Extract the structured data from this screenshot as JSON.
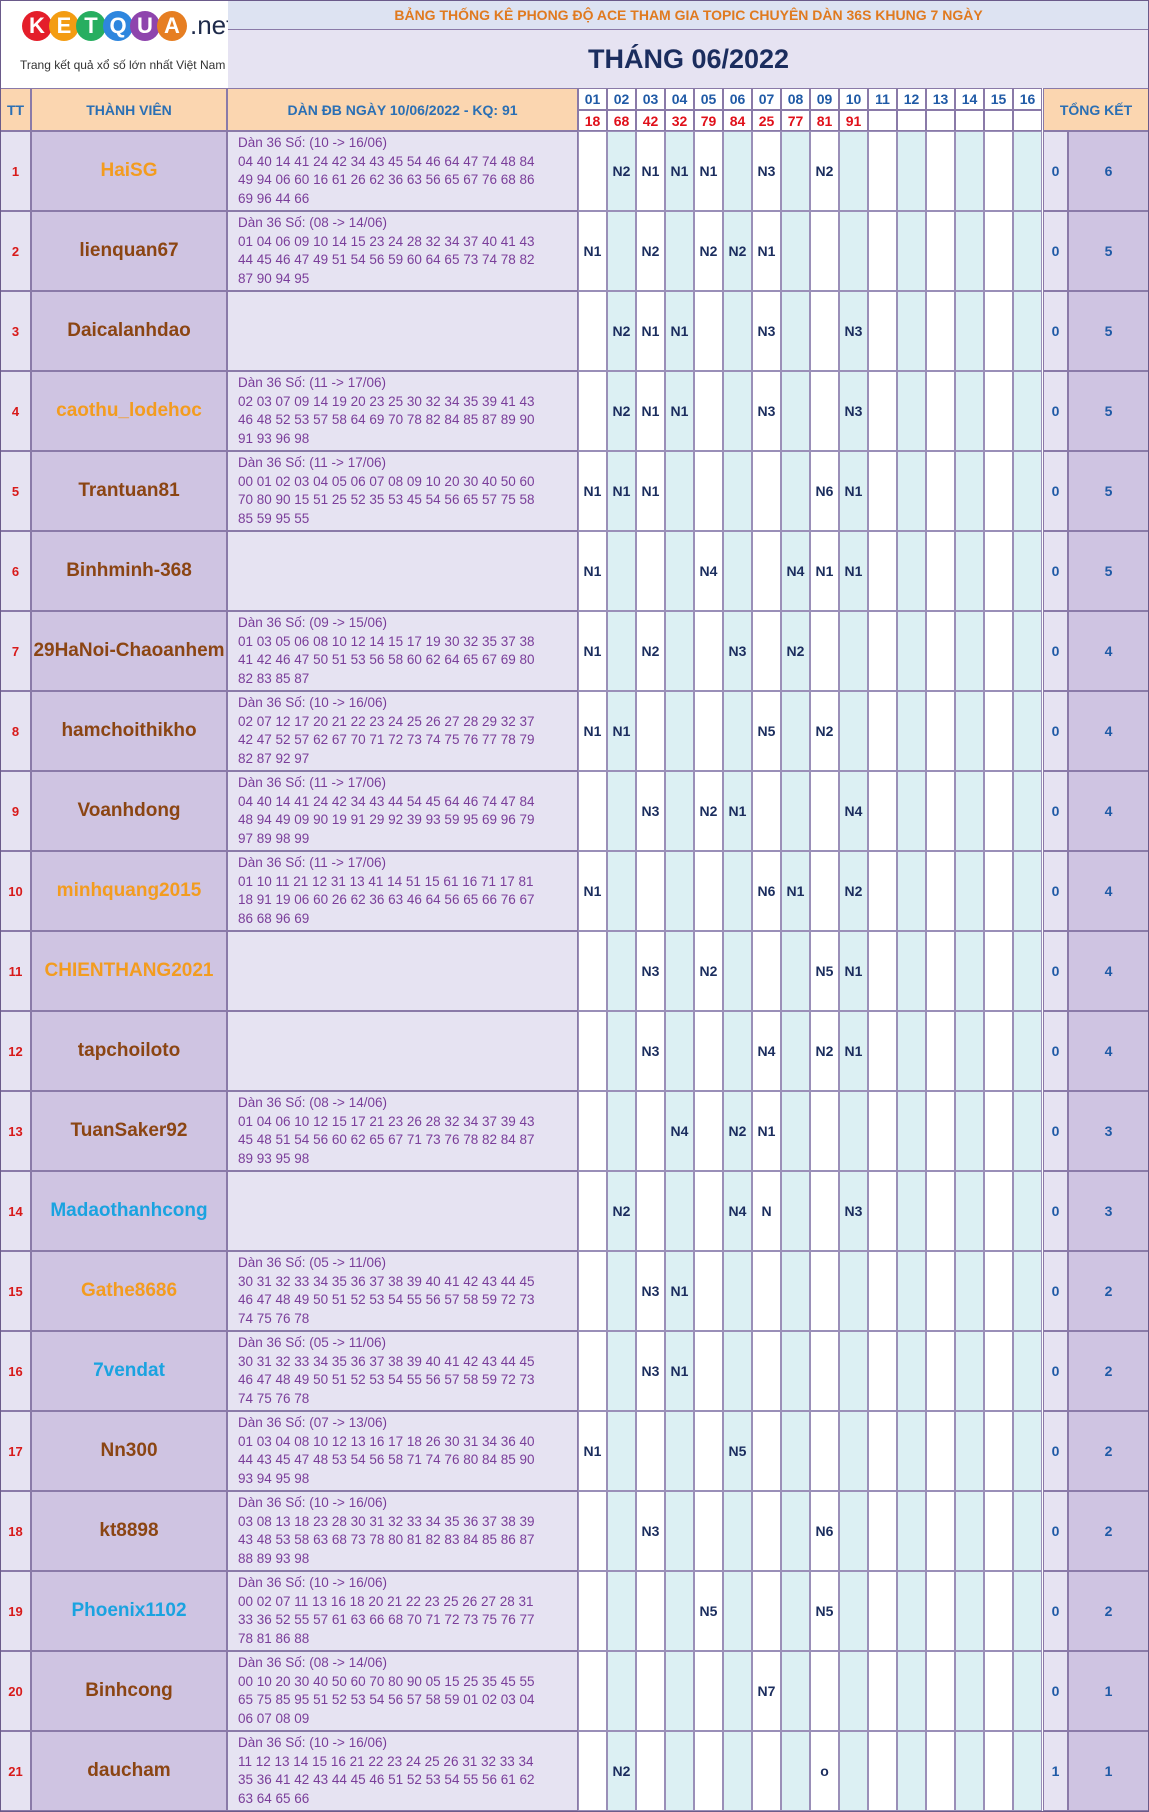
{
  "logo": {
    "letters": [
      "K",
      "E",
      "T",
      "Q",
      "U",
      "A"
    ],
    "colors": [
      "#e41e2a",
      "#f39c12",
      "#27ae60",
      "#2e86de",
      "#8e44ad",
      "#e67e22"
    ],
    "suffix": ".net",
    "tagline": "Trang kết quả xổ số lớn nhất Việt Nam"
  },
  "header": {
    "subtitle": "BẢNG THỐNG KÊ PHONG ĐỘ ACE THAM GIA TOPIC CHUYÊN DÀN 36S KHUNG 7 NGÀY",
    "month": "THÁNG 06/2022"
  },
  "columns": {
    "tt": "TT",
    "member": "THÀNH VIÊN",
    "dan": "DÀN ĐB NGÀY 10/06/2022 - KQ: 91",
    "summary": "TỔNG KẾT"
  },
  "days": [
    "01",
    "02",
    "03",
    "04",
    "05",
    "06",
    "07",
    "08",
    "09",
    "10",
    "11",
    "12",
    "13",
    "14",
    "15",
    "16"
  ],
  "results": [
    "18",
    "68",
    "42",
    "32",
    "79",
    "84",
    "25",
    "77",
    "81",
    "91",
    "",
    "",
    "",
    "",
    "",
    ""
  ],
  "rows": [
    {
      "tt": "1",
      "name": "HaiSG",
      "color": "#f39c1f",
      "dan": [
        "Dàn 36 Số: (10 -> 16/06)",
        "04 40 14 41 24 42 34 43 45 54 46 64 47 74 48 84",
        "49 94 06 60 16 61 26 62 36 63 56 65 67 76 68 86",
        "69 96 44 66"
      ],
      "marks": [
        "",
        "N2",
        "N1",
        "N1",
        "N1",
        "",
        "N3",
        "",
        "N2",
        "",
        "",
        "",
        "",
        "",
        "",
        ""
      ],
      "s1": "0",
      "s2": "6"
    },
    {
      "tt": "2",
      "name": "lienquan67",
      "color": "#8b4513",
      "dan": [
        "Dàn 36 Số: (08 -> 14/06)",
        "01 04 06 09 10 14 15 23 24 28 32 34 37 40 41 43",
        "44 45 46 47 49 51 54 56 59 60 64 65 73 74 78 82",
        "87 90 94 95"
      ],
      "marks": [
        "N1",
        "",
        "N2",
        "",
        "N2",
        "N2",
        "N1",
        "",
        "",
        "",
        "",
        "",
        "",
        "",
        "",
        ""
      ],
      "s1": "0",
      "s2": "5"
    },
    {
      "tt": "3",
      "name": "Daicalanhdao",
      "color": "#8b4513",
      "dan": [],
      "marks": [
        "",
        "N2",
        "N1",
        "N1",
        "",
        "",
        "N3",
        "",
        "",
        "N3",
        "",
        "",
        "",
        "",
        "",
        ""
      ],
      "s1": "0",
      "s2": "5"
    },
    {
      "tt": "4",
      "name": "caothu_lodehoc",
      "color": "#f39c1f",
      "dan": [
        "Dàn 36 Số: (11 -> 17/06)",
        "02 03 07 09 14 19 20 23 25 30 32 34 35 39 41 43",
        "46 48 52 53 57 58 64 69 70 78 82 84 85 87 89 90",
        "91 93 96 98"
      ],
      "marks": [
        "",
        "N2",
        "N1",
        "N1",
        "",
        "",
        "N3",
        "",
        "",
        "N3",
        "",
        "",
        "",
        "",
        "",
        ""
      ],
      "s1": "0",
      "s2": "5"
    },
    {
      "tt": "5",
      "name": "Trantuan81",
      "color": "#8b4513",
      "dan": [
        "Dàn 36 Số: (11 -> 17/06)",
        "00 01 02 03 04 05 06 07 08 09 10 20 30 40 50 60",
        "70 80 90 15 51 25 52 35 53 45 54 56 65 57 75 58",
        "85 59 95 55"
      ],
      "marks": [
        "N1",
        "N1",
        "N1",
        "",
        "",
        "",
        "",
        "",
        "N6",
        "N1",
        "",
        "",
        "",
        "",
        "",
        ""
      ],
      "s1": "0",
      "s2": "5"
    },
    {
      "tt": "6",
      "name": "Binhminh-368",
      "color": "#8b4513",
      "dan": [],
      "marks": [
        "N1",
        "",
        "",
        "",
        "N4",
        "",
        "",
        "N4",
        "N1",
        "N1",
        "",
        "",
        "",
        "",
        "",
        ""
      ],
      "s1": "0",
      "s2": "5"
    },
    {
      "tt": "7",
      "name": "29HaNoi-Chaoanhem",
      "color": "#8b4513",
      "dan": [
        "Dàn 36 Số: (09 -> 15/06)",
        "01 03 05 06 08 10 12 14 15 17 19 30 32 35 37 38",
        "41 42 46 47 50 51 53 56 58 60 62 64 65 67 69 80",
        "82 83 85 87"
      ],
      "marks": [
        "N1",
        "",
        "N2",
        "",
        "",
        "N3",
        "",
        "N2",
        "",
        "",
        "",
        "",
        "",
        "",
        "",
        ""
      ],
      "s1": "0",
      "s2": "4"
    },
    {
      "tt": "8",
      "name": "hamchoithikho",
      "color": "#8b4513",
      "dan": [
        "Dàn 36 Số: (10 -> 16/06)",
        "02 07 12 17 20 21 22 23 24 25 26 27 28 29 32 37",
        "42 47 52 57 62 67 70 71 72 73 74 75 76 77 78 79",
        "82 87 92 97"
      ],
      "marks": [
        "N1",
        "N1",
        "",
        "",
        "",
        "",
        "N5",
        "",
        "N2",
        "",
        "",
        "",
        "",
        "",
        "",
        ""
      ],
      "s1": "0",
      "s2": "4"
    },
    {
      "tt": "9",
      "name": "Voanhdong",
      "color": "#8b4513",
      "dan": [
        "Dàn 36 Số: (11 -> 17/06)",
        "04 40 14 41 24 42 34 43 44 54 45 64 46 74 47 84",
        "48 94 49 09 90 19 91 29 92 39 93 59 95 69 96 79",
        "97 89 98 99"
      ],
      "marks": [
        "",
        "",
        "N3",
        "",
        "N2",
        "N1",
        "",
        "",
        "",
        "N4",
        "",
        "",
        "",
        "",
        "",
        ""
      ],
      "s1": "0",
      "s2": "4"
    },
    {
      "tt": "10",
      "name": "minhquang2015",
      "color": "#f39c1f",
      "dan": [
        "Dàn 36 Số: (11 -> 17/06)",
        "01 10 11 21 12 31 13 41 14 51 15 61 16 71 17 81",
        "18 91 19 06 60 26 62 36 63 46 64 56 65 66 76 67",
        "86 68 96 69"
      ],
      "marks": [
        "N1",
        "",
        "",
        "",
        "",
        "",
        "N6",
        "N1",
        "",
        "N2",
        "",
        "",
        "",
        "",
        "",
        ""
      ],
      "s1": "0",
      "s2": "4"
    },
    {
      "tt": "11",
      "name": "CHIENTHANG2021",
      "color": "#f39c1f",
      "dan": [],
      "marks": [
        "",
        "",
        "N3",
        "",
        "N2",
        "",
        "",
        "",
        "N5",
        "N1",
        "",
        "",
        "",
        "",
        "",
        ""
      ],
      "s1": "0",
      "s2": "4"
    },
    {
      "tt": "12",
      "name": "tapchoiloto",
      "color": "#8b4513",
      "dan": [],
      "marks": [
        "",
        "",
        "N3",
        "",
        "",
        "",
        "N4",
        "",
        "N2",
        "N1",
        "",
        "",
        "",
        "",
        "",
        ""
      ],
      "s1": "0",
      "s2": "4"
    },
    {
      "tt": "13",
      "name": "TuanSaker92",
      "color": "#8b4513",
      "dan": [
        "Dàn 36 Số: (08 -> 14/06)",
        "01 04 06 10 12 15 17 21 23 26 28 32 34 37 39 43",
        "45 48 51 54 56 60 62 65 67 71 73 76 78 82 84 87",
        "89 93 95 98"
      ],
      "marks": [
        "",
        "",
        "",
        "N4",
        "",
        "N2",
        "N1",
        "",
        "",
        "",
        "",
        "",
        "",
        "",
        "",
        ""
      ],
      "s1": "0",
      "s2": "3"
    },
    {
      "tt": "14",
      "name": "Madaothanhcong",
      "color": "#1aa3e0",
      "dan": [],
      "marks": [
        "",
        "N2",
        "",
        "",
        "",
        "N4",
        "N",
        "",
        "",
        "N3",
        "",
        "",
        "",
        "",
        "",
        ""
      ],
      "s1": "0",
      "s2": "3"
    },
    {
      "tt": "15",
      "name": "Gathe8686",
      "color": "#f39c1f",
      "dan": [
        "Dàn 36 Số: (05 -> 11/06)",
        "30 31 32 33 34 35 36 37 38 39 40 41 42 43 44 45",
        "46 47 48 49 50 51 52 53 54 55 56 57 58 59 72 73",
        "74 75 76 78"
      ],
      "marks": [
        "",
        "",
        "N3",
        "N1",
        "",
        "",
        "",
        "",
        "",
        "",
        "",
        "",
        "",
        "",
        "",
        ""
      ],
      "s1": "0",
      "s2": "2"
    },
    {
      "tt": "16",
      "name": "7vendat",
      "color": "#1aa3e0",
      "dan": [
        "Dàn 36 Số: (05 -> 11/06)",
        "30 31 32 33 34 35 36 37 38 39 40 41 42 43 44 45",
        "46 47 48 49 50 51 52 53 54 55 56 57 58 59 72 73",
        "74 75 76 78"
      ],
      "marks": [
        "",
        "",
        "N3",
        "N1",
        "",
        "",
        "",
        "",
        "",
        "",
        "",
        "",
        "",
        "",
        "",
        ""
      ],
      "s1": "0",
      "s2": "2"
    },
    {
      "tt": "17",
      "name": "Nn300",
      "color": "#8b4513",
      "dan": [
        "Dàn 36 Số: (07 -> 13/06)",
        "01 03 04 08 10 12 13 16 17 18 26 30 31 34 36 40",
        "44 43 45 47 48 53 54 56 58 71 74 76 80 84 85 90",
        "93 94 95 98"
      ],
      "marks": [
        "N1",
        "",
        "",
        "",
        "",
        "N5",
        "",
        "",
        "",
        "",
        "",
        "",
        "",
        "",
        "",
        ""
      ],
      "s1": "0",
      "s2": "2"
    },
    {
      "tt": "18",
      "name": "kt8898",
      "color": "#8b4513",
      "dan": [
        "Dàn 36 Số: (10 -> 16/06)",
        "03 08 13 18 23 28 30 31 32 33 34 35 36 37 38 39",
        "43 48 53 58 63 68 73 78 80 81 82 83 84 85 86 87",
        "88 89 93 98"
      ],
      "marks": [
        "",
        "",
        "N3",
        "",
        "",
        "",
        "",
        "",
        "N6",
        "",
        "",
        "",
        "",
        "",
        "",
        ""
      ],
      "s1": "0",
      "s2": "2"
    },
    {
      "tt": "19",
      "name": "Phoenix1102",
      "color": "#1aa3e0",
      "dan": [
        "Dàn 36 Số: (10 -> 16/06)",
        "00 02 07 11 13 16 18 20 21 22 23 25 26 27 28 31",
        "33 36 52 55 57 61 63 66 68 70 71 72 73 75 76 77",
        "78 81 86 88"
      ],
      "marks": [
        "",
        "",
        "",
        "",
        "N5",
        "",
        "",
        "",
        "N5",
        "",
        "",
        "",
        "",
        "",
        "",
        ""
      ],
      "s1": "0",
      "s2": "2"
    },
    {
      "tt": "20",
      "name": "Binhcong",
      "color": "#8b4513",
      "dan": [
        "Dàn 36 Số: (08 -> 14/06)",
        "00 10 20 30 40 50 60 70 80 90 05 15 25 35 45 55",
        "65 75 85 95 51 52 53 54 56 57 58 59 01 02 03 04",
        "06 07 08 09"
      ],
      "marks": [
        "",
        "",
        "",
        "",
        "",
        "",
        "N7",
        "",
        "",
        "",
        "",
        "",
        "",
        "",
        "",
        ""
      ],
      "s1": "0",
      "s2": "1"
    },
    {
      "tt": "21",
      "name": "daucham",
      "color": "#8b4513",
      "dan": [
        "Dàn 36 Số: (10 -> 16/06)",
        "11 12 13 14 15 16 21 22 23 24 25 26 31 32 33 34",
        "35 36 41 42 43 44 45 46 51 52 53 54 55 56 61 62",
        "63 64 65 66"
      ],
      "marks": [
        "",
        "N2",
        "",
        "",
        "",
        "",
        "",
        "",
        "o",
        "",
        "",
        "",
        "",
        "",
        "",
        ""
      ],
      "s1": "1",
      "s2": "1"
    }
  ]
}
